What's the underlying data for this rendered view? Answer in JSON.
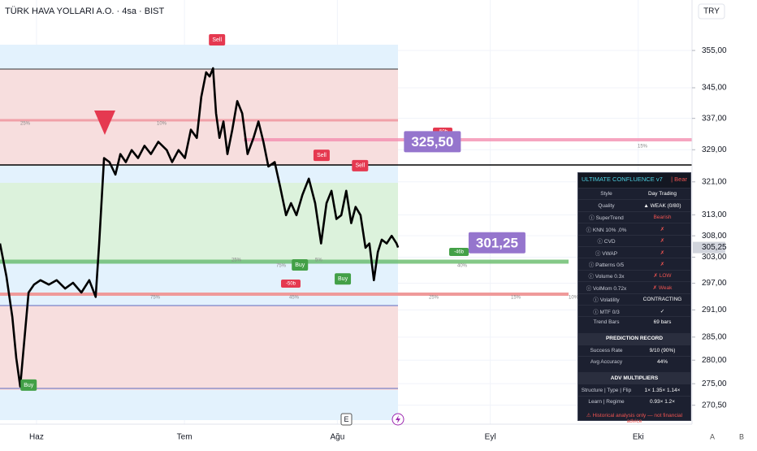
{
  "chart_data": {
    "type": "line",
    "title": "TÜRK HAVA YOLLARI A.O. · 4sa · BIST",
    "currency": "TRY",
    "log_scale": true,
    "grid": true,
    "color": "#000000",
    "x": [
      -7.4,
      -6.1,
      -4.9,
      -4.1,
      -3.3,
      -2.5,
      -1.6,
      -0.5,
      0.8,
      2.5,
      4.1,
      5.8,
      7.4,
      9.1,
      10.7,
      12.0,
      12.7,
      13.7,
      14.8,
      16.0,
      17.0,
      18.1,
      19.3,
      20.6,
      21.9,
      23.2,
      24.7,
      26.4,
      27.5,
      28.8,
      30.1,
      31.3,
      32.5,
      33.4,
      34.4,
      35.1,
      35.8,
      36.4,
      37.1,
      37.9,
      38.7,
      39.7,
      40.7,
      41.7,
      42.8,
      44.0,
      45.0,
      46.0,
      47.0,
      48.3,
      49.4,
      50.6,
      51.6,
      52.7,
      53.9,
      55.2,
      56.5,
      57.7,
      58.8,
      59.8,
      60.8,
      61.8,
      62.8,
      63.8,
      64.7,
      65.7,
      66.7,
      67.5,
      68.4,
      69.2,
      70.0,
      71.0,
      72.0,
      73.0,
      73.3
    ],
    "values": [
      306.2,
      298.6,
      289.4,
      280.5,
      274.4,
      284.0,
      294.9,
      296.7,
      297.7,
      296.7,
      297.7,
      295.8,
      297.1,
      294.9,
      297.7,
      293.9,
      306.2,
      326.9,
      325.9,
      322.8,
      327.9,
      325.9,
      328.9,
      326.9,
      330.0,
      327.9,
      331.0,
      328.9,
      325.9,
      328.9,
      326.9,
      334.1,
      332.0,
      342.6,
      349.1,
      348.0,
      350.2,
      338.3,
      332.0,
      336.2,
      327.9,
      334.1,
      341.5,
      338.3,
      327.9,
      332.0,
      336.2,
      331.0,
      324.8,
      325.9,
      319.8,
      312.9,
      315.8,
      312.9,
      317.8,
      321.8,
      315.8,
      306.2,
      315.8,
      318.8,
      312.0,
      312.9,
      318.8,
      311.0,
      314.9,
      312.9,
      305.2,
      306.2,
      297.7,
      304.2,
      307.1,
      306.2,
      308.0,
      306.2,
      305.25
    ],
    "xlim": [
      -7.4,
      132.9
    ],
    "xticks": [
      {
        "value": 0,
        "label": "Haz"
      },
      {
        "value": 30,
        "label": "Tem"
      },
      {
        "value": 61,
        "label": "Ağu"
      },
      {
        "value": 92,
        "label": "Eyl"
      },
      {
        "value": 122,
        "label": "Eki"
      }
    ],
    "ylim": [
      266.6,
      369
    ],
    "yticks": [
      {
        "value": 355,
        "label": "355,00"
      },
      {
        "value": 345,
        "label": "345,00"
      },
      {
        "value": 337,
        "label": "337,00"
      },
      {
        "value": 329,
        "label": "329,00"
      },
      {
        "value": 321,
        "label": "321,00"
      },
      {
        "value": 313,
        "label": "313,00"
      },
      {
        "value": 308,
        "label": "308,00"
      },
      {
        "value": 303,
        "label": "303,00"
      },
      {
        "value": 297,
        "label": "297,00"
      },
      {
        "value": 291,
        "label": "291,00"
      },
      {
        "value": 285,
        "label": "285,00"
      },
      {
        "value": 280,
        "label": "280,00"
      },
      {
        "value": 275,
        "label": "275,00"
      },
      {
        "value": 270.5,
        "label": "270,50"
      }
    ],
    "last_price": {
      "value": 305.25,
      "label": "305,25"
    },
    "signals": [
      {
        "label": "Sell",
        "x": 36.6,
        "y": 357.9,
        "color": "#e53950"
      },
      {
        "label": "Sell",
        "x": 57.8,
        "y": 327.6,
        "color": "#e53950"
      },
      {
        "label": "Sell",
        "x": 65.6,
        "y": 325.0,
        "color": "#e53950"
      },
      {
        "label": "Buy",
        "x": -1.6,
        "y": 274.7,
        "color": "#43a047"
      },
      {
        "label": "Buy",
        "x": 53.4,
        "y": 301.2,
        "color": "#43a047"
      },
      {
        "label": "Buy",
        "x": 62.1,
        "y": 298.0,
        "color": "#43a047"
      }
    ],
    "price_labels": [
      {
        "value": 325.5,
        "label": "325,50",
        "x": 74.5
      },
      {
        "value": 301.25,
        "label": "301,25",
        "x": 87.6
      }
    ],
    "tags": [
      "-50b",
      "-50b",
      "-46b"
    ],
    "zone_labels": [
      "25%",
      "10%",
      "15%",
      "75%",
      "5%",
      "75%",
      "45%",
      "25%",
      "15%",
      "10%",
      "40%",
      "25%"
    ],
    "scale_buttons": [
      "A",
      "B"
    ],
    "events": [
      "E"
    ]
  },
  "panel": {
    "title": "ULTIMATE CONFLUENCE v7",
    "badge": "| Bear",
    "rows": [
      {
        "label": "Style",
        "value": "Day Trading",
        "color": "#ffffff"
      },
      {
        "label": "Quality",
        "value": "▲ WEAK (0/80)",
        "color": "#ffffff"
      },
      {
        "label": "ⓘ SuperTrend",
        "value": "Bearish",
        "color": "#ef5350"
      },
      {
        "label": "ⓘ KNN 10% ,0%",
        "value": "✗",
        "color": "#ef5350"
      },
      {
        "label": "ⓘ CVD",
        "value": "✗",
        "color": "#ef5350"
      },
      {
        "label": "ⓘ VWAP",
        "value": "✗",
        "color": "#ef5350"
      },
      {
        "label": "ⓘ Patterns 0/5",
        "value": "✗",
        "color": "#ef5350"
      },
      {
        "label": "ⓘ Volume 0.3x",
        "value": "✗ LOW",
        "color": "#ef5350"
      },
      {
        "label": "ⓘ VolMom 0.72x",
        "value": "✗ Weak",
        "color": "#ef5350"
      },
      {
        "label": "ⓘ Volatility",
        "value": "CONTRACTING",
        "color": "#ffffff"
      },
      {
        "label": "ⓘ MTF 0/3",
        "value": "✓",
        "color": "#ffffff"
      },
      {
        "label": "Trend Bars",
        "value": "69 bars",
        "color": "#ffffff"
      }
    ],
    "record_title": "PREDICTION RECORD",
    "record_rows": [
      {
        "label": "Success Rate",
        "value": "9/10 (90%)",
        "color": "#ffffff"
      },
      {
        "label": "Avg Accuracy",
        "value": "44%",
        "color": "#ffffff"
      }
    ],
    "multipliers_title": "ADV MULTIPLIERS",
    "multiplier_rows": [
      {
        "label": "Structure | Type | Flip",
        "value": "1× 1.35× 1.14×",
        "color": "#ffffff"
      },
      {
        "label": "Learn | Regime",
        "value": "0.93× 1.2×",
        "color": "#ffffff"
      }
    ],
    "footer": "⚠ Historical analysis only — not financial advice"
  }
}
